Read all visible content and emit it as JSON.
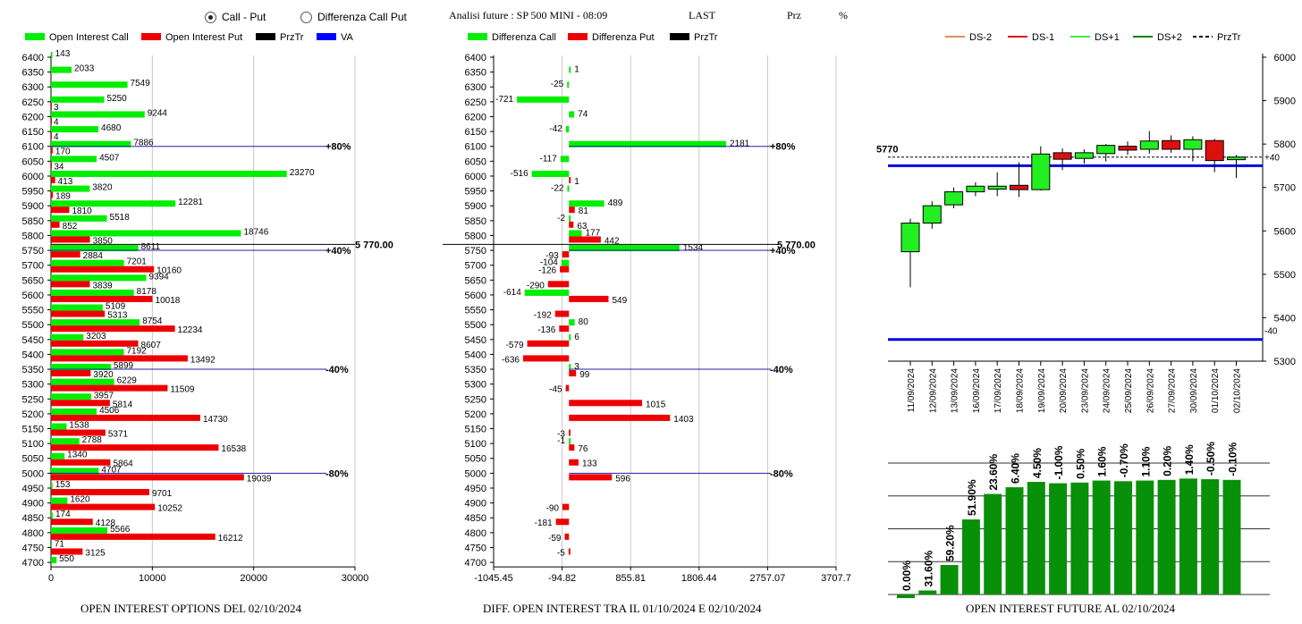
{
  "header": {
    "radio_call_put": "Call - Put",
    "radio_diff": "Differenza Call Put",
    "info": "Analisi future : SP 500 MINI - 08:09",
    "last": "LAST",
    "prz": "Prz",
    "pct": "%"
  },
  "colors": {
    "green": "#00ee00",
    "red": "#ee0000",
    "black": "#000000",
    "blue": "#0000ff",
    "dkgreen": "#008000"
  },
  "chart_data": [
    {
      "type": "bar",
      "orientation": "horizontal",
      "title": "OPEN INTEREST OPTIONS DEL 02/10/2024",
      "legend": [
        "Open Interest Call",
        "Open Interest Put",
        "PrzTr",
        "VA"
      ],
      "xlim": [
        0,
        30000
      ],
      "xticks": [
        "0",
        "10000",
        "20000",
        "30000"
      ],
      "strikes": [
        6400,
        6350,
        6300,
        6250,
        6200,
        6150,
        6100,
        6050,
        6000,
        5950,
        5900,
        5850,
        5800,
        5750,
        5700,
        5650,
        5600,
        5550,
        5500,
        5450,
        5400,
        5350,
        5300,
        5250,
        5200,
        5150,
        5100,
        5050,
        5000,
        4950,
        4900,
        4850,
        4800,
        4750,
        4700
      ],
      "call": [
        143,
        2033,
        7549,
        5250,
        9244,
        4680,
        7886,
        4507,
        23270,
        3820,
        12281,
        5518,
        18746,
        8611,
        7201,
        9394,
        8178,
        5109,
        8754,
        3203,
        7192,
        5899,
        6229,
        3957,
        4506,
        1538,
        2788,
        1340,
        4707,
        153,
        1620,
        174,
        5566,
        71,
        550
      ],
      "put": [
        0,
        0,
        0,
        3,
        4,
        4,
        170,
        34,
        413,
        189,
        1810,
        852,
        3850,
        2884,
        10160,
        3839,
        10018,
        5313,
        12234,
        8607,
        13492,
        3920,
        11509,
        5814,
        14730,
        5371,
        16538,
        5864,
        19039,
        9701,
        10252,
        4128,
        16212,
        3125,
        0
      ],
      "price_line": {
        "strike": 5770,
        "label": "5 770.00"
      },
      "level_lines": [
        {
          "strike": 6100,
          "label": "+80%"
        },
        {
          "strike": 5750,
          "label": "+40%"
        },
        {
          "strike": 5350,
          "label": "-40%"
        },
        {
          "strike": 5000,
          "label": "-80%"
        }
      ]
    },
    {
      "type": "bar",
      "orientation": "horizontal",
      "title": "DIFF. OPEN INTEREST TRA IL 01/10/2024 E 02/10/2024",
      "legend": [
        "Differenza Call",
        "Differenza Put",
        "PrzTr"
      ],
      "xlim": [
        -1045.45,
        3707.7
      ],
      "xticks": [
        "-1045.45",
        "-94.82",
        "855.81",
        "1806.44",
        "2757.07",
        "3707.7"
      ],
      "strikes": [
        6400,
        6350,
        6300,
        6250,
        6200,
        6150,
        6100,
        6050,
        6000,
        5950,
        5900,
        5850,
        5800,
        5750,
        5700,
        5650,
        5600,
        5550,
        5500,
        5450,
        5400,
        5350,
        5300,
        5250,
        5200,
        5150,
        5100,
        5050,
        5000,
        4950,
        4900,
        4850,
        4800,
        4750,
        4700
      ],
      "call": [
        null,
        1,
        -25,
        -721,
        74,
        -42,
        2181,
        -117,
        -516,
        -22,
        489,
        -2,
        177,
        1534,
        -104,
        null,
        -614,
        null,
        80,
        6,
        null,
        3,
        null,
        null,
        null,
        null,
        -1,
        null,
        null,
        null,
        null,
        null,
        null,
        null,
        null
      ],
      "put": [
        null,
        null,
        null,
        null,
        null,
        null,
        null,
        null,
        1,
        null,
        81,
        63,
        442,
        -93,
        -126,
        -290,
        549,
        -192,
        -136,
        -579,
        -636,
        99,
        -45,
        1015,
        1403,
        -3,
        76,
        133,
        596,
        null,
        -90,
        -181,
        -59,
        -5,
        null
      ],
      "call_labels": [
        null,
        "1",
        "-25",
        "-721",
        "74",
        "-42",
        "2181",
        "-117",
        "-516",
        "-22",
        "489",
        "-2",
        "177",
        "1534",
        "-104",
        null,
        "-614",
        null,
        "80",
        "6",
        null,
        "3",
        null,
        null,
        null,
        null,
        "-1",
        null,
        null,
        null,
        null,
        null,
        null,
        null,
        null
      ],
      "put_labels": [
        null,
        null,
        null,
        null,
        null,
        null,
        null,
        null,
        "1",
        null,
        "81",
        "63",
        "442",
        "-93",
        "-126",
        "-290",
        "549",
        "-192",
        "-136",
        "-579",
        "-636",
        "99",
        "-45",
        "1015",
        "1403",
        "-3",
        "76",
        "133",
        "596",
        null,
        "-90",
        "-181",
        "-59",
        "-5",
        null
      ],
      "price_line": {
        "strike": 5770,
        "label": "5 770.00"
      },
      "level_lines": [
        {
          "strike": 6100,
          "label": "+80%"
        },
        {
          "strike": 5750,
          "label": "+40%"
        },
        {
          "strike": 5350,
          "label": "-40%"
        },
        {
          "strike": 5000,
          "label": "-80%"
        }
      ]
    },
    {
      "type": "candlestick",
      "legend": [
        "DS-2",
        "DS-1",
        "DS+1",
        "DS+2",
        "PrzTr"
      ],
      "ylim": [
        5300,
        6000
      ],
      "yticks": [
        "6000",
        "5900",
        "5800",
        "5700",
        "5600",
        "5500",
        "5400",
        "5300"
      ],
      "price_label": "5770",
      "price": 5770,
      "plus_level": {
        "value": 5750,
        "label": "+40"
      },
      "minus_level": {
        "value": 5350,
        "label": "-40"
      },
      "dates": [
        "11/09/2024",
        "12/09/2024",
        "13/09/2024",
        "16/09/2024",
        "17/09/2024",
        "18/09/2024",
        "19/09/2024",
        "20/09/2024",
        "23/09/2024",
        "24/09/2024",
        "25/09/2024",
        "26/09/2024",
        "27/09/2024",
        "30/09/2024",
        "01/10/2024",
        "02/10/2024"
      ],
      "candles": [
        {
          "open": 5552,
          "close": 5618,
          "high": 5628,
          "low": 5470
        },
        {
          "open": 5618,
          "close": 5658,
          "high": 5668,
          "low": 5605
        },
        {
          "open": 5660,
          "close": 5690,
          "high": 5700,
          "low": 5652
        },
        {
          "open": 5690,
          "close": 5703,
          "high": 5712,
          "low": 5680
        },
        {
          "open": 5696,
          "close": 5703,
          "high": 5735,
          "low": 5680
        },
        {
          "open": 5705,
          "close": 5695,
          "high": 5758,
          "low": 5678
        },
        {
          "open": 5695,
          "close": 5777,
          "high": 5795,
          "low": 5693
        },
        {
          "open": 5780,
          "close": 5765,
          "high": 5790,
          "low": 5740
        },
        {
          "open": 5767,
          "close": 5780,
          "high": 5788,
          "low": 5755
        },
        {
          "open": 5778,
          "close": 5797,
          "high": 5800,
          "low": 5760
        },
        {
          "open": 5795,
          "close": 5786,
          "high": 5806,
          "low": 5775
        },
        {
          "open": 5788,
          "close": 5807,
          "high": 5830,
          "low": 5778
        },
        {
          "open": 5808,
          "close": 5788,
          "high": 5820,
          "low": 5780
        },
        {
          "open": 5788,
          "close": 5810,
          "high": 5818,
          "low": 5760
        },
        {
          "open": 5808,
          "close": 5762,
          "high": 5812,
          "low": 5735
        },
        {
          "open": 5764,
          "close": 5770,
          "high": 5775,
          "low": 5722
        }
      ]
    },
    {
      "type": "bar",
      "title": "OPEN INTEREST FUTURE AL 02/10/2024",
      "values": [
        0.0,
        3.0,
        22.0,
        56.0,
        75.0,
        80.0,
        84.0,
        83.0,
        83.5,
        85.0,
        84.5,
        85.0,
        85.5,
        86.5,
        86.0,
        85.5
      ],
      "labels": [
        "0.00%",
        "31.60%",
        "59.20%",
        "51.90%",
        "23.60%",
        "6.40%",
        "4.50%",
        "-1.00%",
        "0.50%",
        "1.60%",
        "-0.70%",
        "1.10%",
        "0.20%",
        "1.40%",
        "-0.50%",
        "-0.10%"
      ]
    }
  ]
}
